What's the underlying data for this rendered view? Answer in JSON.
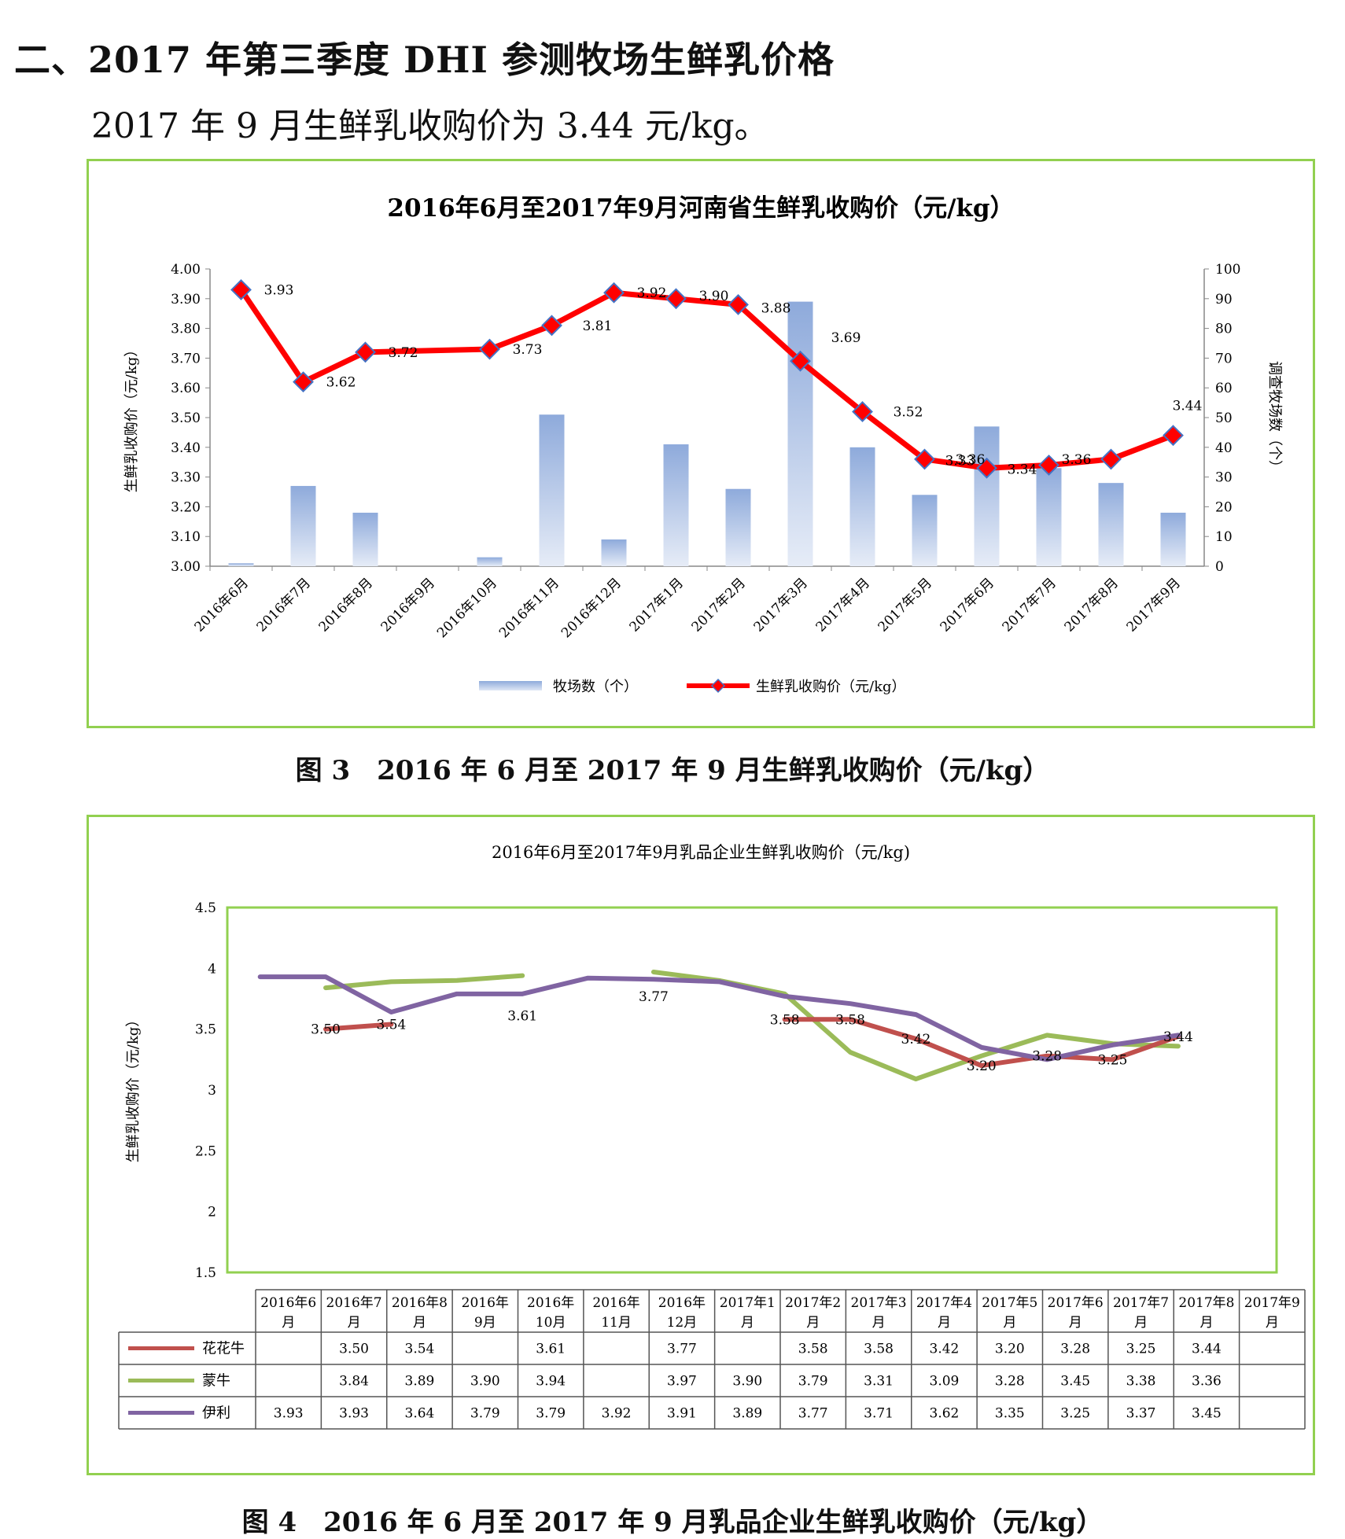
{
  "heading": "二、2017 年第三季度 DHI 参测牧场生鲜乳价格",
  "subtext": "2017 年 9 月生鲜乳收购价为 3.44 元/kg。",
  "captions": {
    "fig3": "图 3　2016 年 6 月至 2017 年 9 月生鲜乳收购价（元/kg）",
    "fig4": "图 4　2016 年 6 月至 2017 年 9 月乳品企业生鲜乳收购价（元/kg）"
  },
  "colors": {
    "border": "#92d050",
    "bar": "#8eaadb",
    "price_line": "#ff0000",
    "marker_edge": "#4472c4",
    "huahuaniu": "#c0504d",
    "mengniu": "#9bbb59",
    "yili": "#8064a2"
  },
  "chart_data": [
    {
      "type": "bar+line",
      "title": "2016年6月至2017年9月河南省生鲜乳收购价（元/kg）",
      "categories": [
        "2016年6月",
        "2016年7月",
        "2016年8月",
        "2016年9月",
        "2016年10月",
        "2016年11月",
        "2016年12月",
        "2017年1月",
        "2017年2月",
        "2017年3月",
        "2017年4月",
        "2017年5月",
        "2017年6月",
        "2017年7月",
        "2017年8月",
        "2017年9月"
      ],
      "series": [
        {
          "name": "牧场数（个）",
          "type": "bar",
          "axis": "right",
          "values": [
            1,
            27,
            18,
            0,
            3,
            51,
            9,
            41,
            26,
            89,
            40,
            24,
            47,
            33,
            28,
            18
          ]
        },
        {
          "name": "生鲜乳收购价（元/kg）",
          "type": "line",
          "axis": "left",
          "values": [
            3.93,
            3.62,
            3.72,
            null,
            3.73,
            3.81,
            3.92,
            3.9,
            3.88,
            3.69,
            3.52,
            3.36,
            3.33,
            3.34,
            3.36,
            3.44
          ],
          "labels": [
            "3.93",
            "3.62",
            "3.72",
            "",
            "3.73",
            "3.81",
            "3.92",
            "3.90",
            "3.88",
            "3.69",
            "3.52",
            "3.36",
            "3.33",
            "3.34",
            "3.36",
            "3.44"
          ]
        }
      ],
      "ylabel": "生鲜乳收购价（元/kg）",
      "y2label": "调查牧场数（个）",
      "ylim": [
        3.0,
        4.0
      ],
      "yticks": [
        "3.00",
        "3.10",
        "3.20",
        "3.30",
        "3.40",
        "3.50",
        "3.60",
        "3.70",
        "3.80",
        "3.90",
        "4.00"
      ],
      "y2lim": [
        0,
        100
      ],
      "y2ticks": [
        "0",
        "10",
        "20",
        "30",
        "40",
        "50",
        "60",
        "70",
        "80",
        "90",
        "100"
      ],
      "legend": "bottom",
      "grid": false
    },
    {
      "type": "line",
      "title": "2016年6月至2017年9月乳品企业生鲜乳收购价（元/kg)",
      "categories": [
        "2016年6月",
        "2016年7月",
        "2016年8月",
        "2016年9月",
        "2016年10月",
        "2016年11月",
        "2016年12月",
        "2017年1月",
        "2017年2月",
        "2017年3月",
        "2017年4月",
        "2017年5月",
        "2017年6月",
        "2017年7月",
        "2017年8月",
        "2017年9月"
      ],
      "table_headers": [
        [
          "2016年6",
          "月"
        ],
        [
          "2016年7",
          "月"
        ],
        [
          "2016年8",
          "月"
        ],
        [
          "2016年",
          "9月"
        ],
        [
          "2016年",
          "10月"
        ],
        [
          "2016年",
          "11月"
        ],
        [
          "2016年",
          "12月"
        ],
        [
          "2017年1",
          "月"
        ],
        [
          "2017年2",
          "月"
        ],
        [
          "2017年3",
          "月"
        ],
        [
          "2017年4",
          "月"
        ],
        [
          "2017年5",
          "月"
        ],
        [
          "2017年6",
          "月"
        ],
        [
          "2017年7",
          "月"
        ],
        [
          "2017年8",
          "月"
        ],
        [
          "2017年9",
          "月"
        ]
      ],
      "series": [
        {
          "name": "花花牛",
          "values": [
            null,
            3.5,
            3.54,
            null,
            3.61,
            null,
            3.77,
            null,
            3.58,
            3.58,
            3.42,
            3.2,
            3.28,
            3.25,
            3.44,
            null
          ],
          "cells": [
            "",
            "3.50",
            "3.54",
            "",
            "3.61",
            "",
            "3.77",
            "",
            "3.58",
            "3.58",
            "3.42",
            "3.20",
            "3.28",
            "3.25",
            "3.44",
            ""
          ]
        },
        {
          "name": "蒙牛",
          "values": [
            null,
            3.84,
            3.89,
            3.9,
            3.94,
            null,
            3.97,
            3.9,
            3.79,
            3.31,
            3.09,
            3.28,
            3.45,
            3.38,
            3.36,
            null
          ],
          "cells": [
            "",
            "3.84",
            "3.89",
            "3.90",
            "3.94",
            "",
            "3.97",
            "3.90",
            "3.79",
            "3.31",
            "3.09",
            "3.28",
            "3.45",
            "3.38",
            "3.36",
            ""
          ]
        },
        {
          "name": "伊利",
          "values": [
            3.93,
            3.93,
            3.64,
            3.79,
            3.79,
            3.92,
            3.91,
            3.89,
            3.77,
            3.71,
            3.62,
            3.35,
            3.25,
            3.37,
            3.45,
            null
          ],
          "cells": [
            "3.93",
            "3.93",
            "3.64",
            "3.79",
            "3.79",
            "3.92",
            "3.91",
            "3.89",
            "3.77",
            "3.71",
            "3.62",
            "3.35",
            "3.25",
            "3.37",
            "3.45",
            ""
          ]
        }
      ],
      "ylabel": "生鲜乳收购价（元/kg）",
      "ylim": [
        1.5,
        4.5
      ],
      "yticks": [
        "1.5",
        "2",
        "2.5",
        "3",
        "3.5",
        "4",
        "4.5"
      ],
      "legend": "data-table",
      "grid": false
    }
  ]
}
